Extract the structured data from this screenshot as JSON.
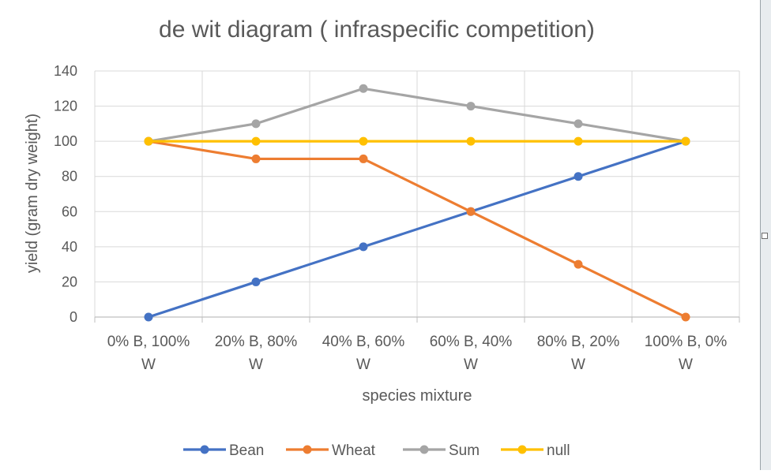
{
  "chart_data": {
    "type": "line",
    "title": "de wit diagram ( infraspecific competition)",
    "xlabel": "species mixture",
    "ylabel": "yield (gram dry weight)",
    "categories": [
      [
        "0% B, 100%",
        "W"
      ],
      [
        "20% B, 80%",
        "W"
      ],
      [
        "40% B, 60%",
        "W"
      ],
      [
        "60% B, 40%",
        "W"
      ],
      [
        "80% B, 20%",
        "W"
      ],
      [
        "100% B, 0%",
        "W"
      ]
    ],
    "ylim": [
      0,
      140
    ],
    "yticks": [
      0,
      20,
      40,
      60,
      80,
      100,
      120,
      140
    ],
    "grid": true,
    "legend_position": "bottom",
    "series": [
      {
        "name": "Bean",
        "color": "#4472c4",
        "values": [
          0,
          20,
          40,
          60,
          80,
          100
        ]
      },
      {
        "name": "Wheat",
        "color": "#ed7d31",
        "values": [
          100,
          90,
          90,
          60,
          30,
          0
        ]
      },
      {
        "name": "Sum",
        "color": "#a5a5a5",
        "values": [
          100,
          110,
          130,
          120,
          110,
          100
        ]
      },
      {
        "name": "null",
        "color": "#ffc000",
        "values": [
          100,
          100,
          100,
          100,
          100,
          100
        ]
      }
    ]
  }
}
